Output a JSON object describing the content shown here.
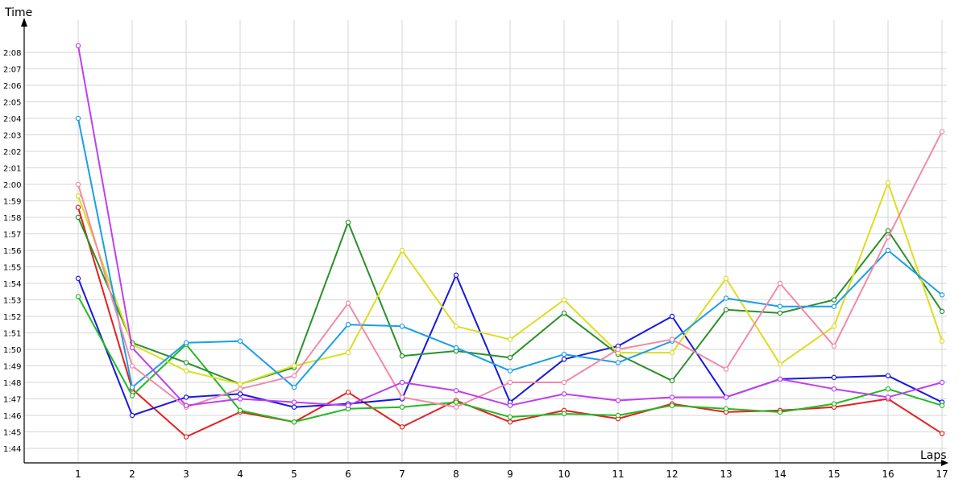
{
  "chart_data": {
    "type": "line",
    "ylabel": "Time",
    "xlabel": "Laps",
    "x": [
      1,
      2,
      3,
      4,
      5,
      6,
      7,
      8,
      9,
      10,
      11,
      12,
      13,
      14,
      15,
      16,
      17
    ],
    "ylim": [
      "1:44",
      "2:08"
    ],
    "yticks": [
      "1:44",
      "1:45",
      "1:46",
      "1:47",
      "1:48",
      "1:49",
      "1:50",
      "1:51",
      "1:52",
      "1:53",
      "1:54",
      "1:55",
      "1:56",
      "1:57",
      "1:58",
      "1:59",
      "2:00",
      "2:01",
      "2:02",
      "2:03",
      "2:04",
      "2:05",
      "2:06",
      "2:07",
      "2:08"
    ],
    "grid": true,
    "series": [
      {
        "color": "#e52020",
        "values": [
          "1:58.6",
          "1:47.6",
          "1:44.7",
          "1:46.2",
          "1:45.6",
          "1:47.4",
          "1:45.3",
          "1:46.9",
          "1:45.6",
          "1:46.3",
          "1:45.8",
          "1:46.7",
          "1:46.2",
          "1:46.3",
          "1:46.5",
          "1:47.0",
          "1:44.9"
        ]
      },
      {
        "color": "#1818e0",
        "values": [
          "1:54.3",
          "1:46.0",
          "1:47.1",
          "1:47.3",
          "1:46.5",
          "1:46.7",
          "1:47.0",
          "1:54.5",
          "1:46.8",
          "1:49.4",
          "1:50.2",
          "1:52.0",
          "1:47.1",
          "1:48.2",
          "1:48.3",
          "1:48.4",
          "1:46.8"
        ]
      },
      {
        "color": "#22bb22",
        "values": [
          "1:53.2",
          "1:47.2",
          "1:50.3",
          "1:46.3",
          "1:45.6",
          "1:46.4",
          "1:46.5",
          "1:46.8",
          "1:45.9",
          "1:46.1",
          "1:46.0",
          "1:46.6",
          "1:46.4",
          "1:46.2",
          "1:46.7",
          "1:47.6",
          "1:46.6"
        ]
      },
      {
        "color": "#2a902a",
        "values": [
          "1:58.0",
          "1:50.4",
          "1:49.2",
          "1:47.9",
          "1:48.9",
          "1:57.7",
          "1:49.6",
          "1:49.9",
          "1:49.5",
          "1:52.2",
          "1:49.7",
          "1:48.1",
          "1:52.4",
          "1:52.2",
          "1:53.0",
          "1:57.2",
          "1:52.3"
        ]
      },
      {
        "color": "#dddd22",
        "values": [
          "1:59.3",
          "1:50.3",
          "1:48.7",
          "1:47.9",
          "1:49.0",
          "1:49.8",
          "1:56.0",
          "1:51.4",
          "1:50.6",
          "1:53.0",
          "1:49.8",
          "1:49.8",
          "1:54.3",
          "1:49.1",
          "1:51.4",
          "2:00.1",
          "1:50.5"
        ]
      },
      {
        "color": "#1a9fe8",
        "values": [
          "2:04.0",
          "1:47.7",
          "1:50.4",
          "1:50.5",
          "1:47.7",
          "1:51.5",
          "1:51.4",
          "1:50.1",
          "1:48.7",
          "1:49.7",
          "1:49.2",
          "1:50.5",
          "1:53.1",
          "1:52.6",
          "1:52.6",
          "1:56.0",
          "1:53.3"
        ]
      },
      {
        "color": "#f08aa8",
        "values": [
          "2:00.0",
          "1:49.0",
          "1:46.5",
          "1:47.6",
          "1:48.4",
          "1:52.8",
          "1:47.1",
          "1:46.5",
          "1:48.0",
          "1:48.0",
          "1:50.0",
          "1:50.6",
          "1:48.8",
          "1:54.0",
          "1:50.2",
          "1:56.8",
          "2:03.2"
        ]
      },
      {
        "color": "#c040ee",
        "values": [
          "2:08.4",
          "1:50.1",
          "1:46.6",
          "1:47.0",
          "1:46.8",
          "1:46.6",
          "1:48.0",
          "1:47.5",
          "1:46.6",
          "1:47.3",
          "1:46.9",
          "1:47.1",
          "1:47.1",
          "1:48.2",
          "1:47.6",
          "1:47.1",
          "1:48.0"
        ]
      }
    ]
  }
}
